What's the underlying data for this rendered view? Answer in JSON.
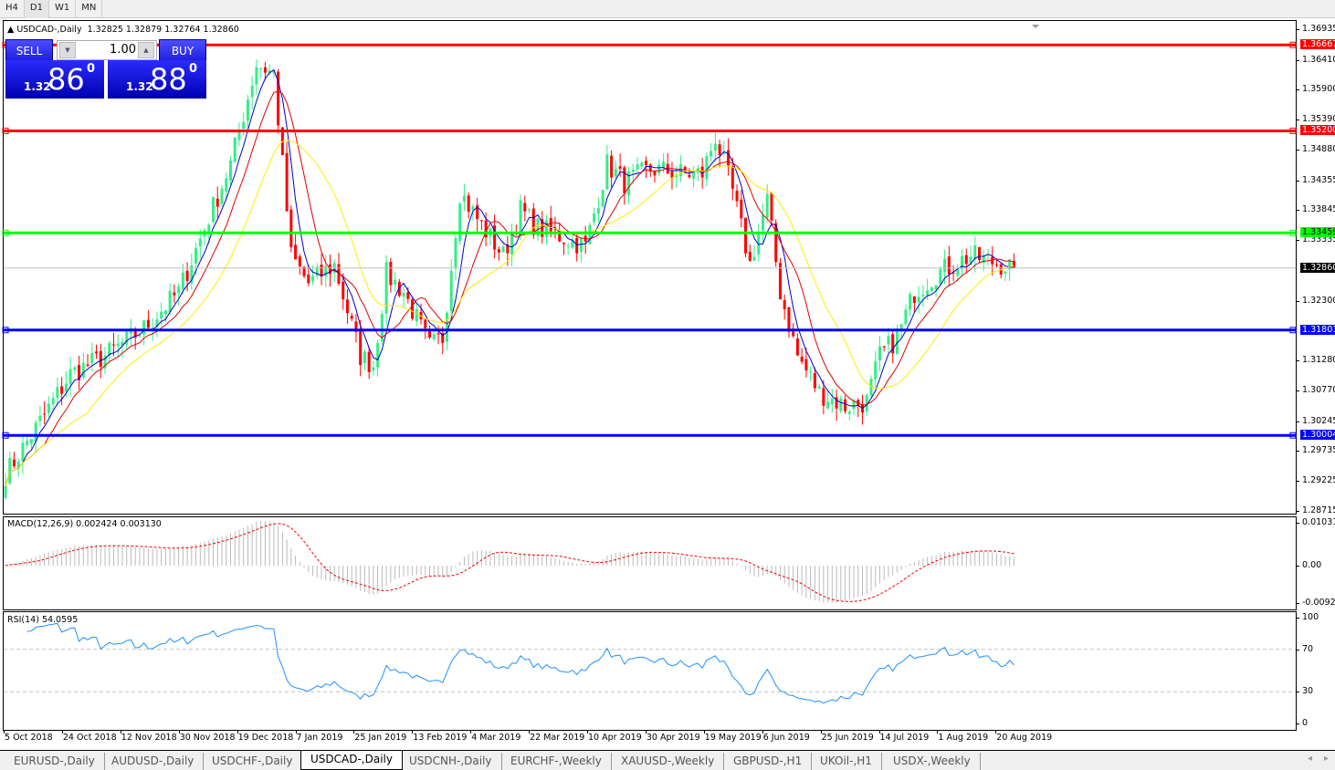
{
  "timeframes": [
    "H4",
    "D1",
    "W1",
    "MN"
  ],
  "active_timeframe": "D1",
  "chart": {
    "title": "USDCAD-,Daily",
    "ohlc": "1.32825 1.32879 1.32764 1.32860"
  },
  "trade_panel": {
    "sell_label": "SELL",
    "buy_label": "BUY",
    "lot": "1.00",
    "sell_prefix": "1.32",
    "sell_big": "86",
    "sell_pip": "0",
    "buy_prefix": "1.32",
    "buy_big": "88",
    "buy_pip": "0"
  },
  "price_axis": [
    "1.36935",
    "1.36410",
    "1.35900",
    "1.35390",
    "1.34880",
    "1.34355",
    "1.33845",
    "1.33335",
    "1.32300",
    "1.31280",
    "1.30770",
    "1.30245",
    "1.29735",
    "1.29225",
    "1.28715"
  ],
  "levels": [
    {
      "price": "1.36667",
      "color": "#ff0000"
    },
    {
      "price": "1.35200",
      "color": "#ff0000"
    },
    {
      "price": "1.33459",
      "color": "#00ff00"
    },
    {
      "price": "1.31801",
      "color": "#0000ff"
    },
    {
      "price": "1.30004",
      "color": "#0000ff"
    }
  ],
  "current_price": "1.32860",
  "macd": {
    "label": "MACD(12,26,9) 0.002424 0.003130",
    "axis": [
      "0.010311",
      "0.00",
      "-0.009203"
    ]
  },
  "rsi": {
    "label": "RSI(14) 54.0595",
    "axis": [
      "100",
      "70",
      "30",
      "0"
    ]
  },
  "time_axis": [
    "5 Oct 2018",
    "24 Oct 2018",
    "12 Nov 2018",
    "30 Nov 2018",
    "19 Dec 2018",
    "7 Jan 2019",
    "25 Jan 2019",
    "13 Feb 2019",
    "4 Mar 2019",
    "22 Mar 2019",
    "10 Apr 2019",
    "30 Apr 2019",
    "19 May 2019",
    "6 Jun 2019",
    "25 Jun 2019",
    "14 Jul 2019",
    "1 Aug 2019",
    "20 Aug 2019"
  ],
  "tabs": [
    "EURUSD-,Daily",
    "AUDUSD-,Daily",
    "USDCHF-,Daily",
    "USDCAD-,Daily",
    "USDCNH-,Daily",
    "EURCHF-,Weekly",
    "XAUUSD-,Weekly",
    "GBPUSD-,H1",
    "UKOil-,H1",
    "USDX-,Weekly"
  ],
  "active_tab": "USDCAD-,Daily",
  "colors": {
    "bull": "#33ee88",
    "bear": "#ff0000",
    "ma_fast": "#0000cc",
    "ma_mid": "#dd0000",
    "ma_slow": "#ffee00",
    "macd_hist": "#bbbbbb",
    "macd_signal": "#ff0000",
    "rsi": "#1e90ff"
  },
  "chart_data": {
    "type": "candlestick",
    "symbol": "USDCAD",
    "period": "Daily",
    "ylim": [
      1.28715,
      1.36935
    ],
    "approx_close_path": [
      [
        "2018-10-05",
        1.2934
      ],
      [
        "2018-10-16",
        1.3012
      ],
      [
        "2018-10-26",
        1.3105
      ],
      [
        "2018-11-07",
        1.3136
      ],
      [
        "2018-11-20",
        1.3183
      ],
      [
        "2018-11-30",
        1.3245
      ],
      [
        "2018-12-10",
        1.3354
      ],
      [
        "2018-12-18",
        1.3463
      ],
      [
        "2018-12-26",
        1.3634
      ],
      [
        "2019-01-01",
        1.3618
      ],
      [
        "2019-01-07",
        1.3307
      ],
      [
        "2019-01-11",
        1.326
      ],
      [
        "2019-01-21",
        1.3291
      ],
      [
        "2019-01-29",
        1.3136
      ],
      [
        "2019-02-01",
        1.312
      ],
      [
        "2019-02-06",
        1.3276
      ],
      [
        "2019-02-12",
        1.3245
      ],
      [
        "2019-02-20",
        1.3152
      ],
      [
        "2019-02-25",
        1.3167
      ],
      [
        "2019-03-01",
        1.3416
      ],
      [
        "2019-03-07",
        1.337
      ],
      [
        "2019-03-15",
        1.3307
      ],
      [
        "2019-03-21",
        1.3385
      ],
      [
        "2019-03-27",
        1.3354
      ],
      [
        "2019-04-04",
        1.3338
      ],
      [
        "2019-04-11",
        1.3323
      ],
      [
        "2019-04-18",
        1.3463
      ],
      [
        "2019-04-24",
        1.3432
      ],
      [
        "2019-05-02",
        1.3455
      ],
      [
        "2019-05-14",
        1.3447
      ],
      [
        "2019-05-20",
        1.3447
      ],
      [
        "2019-05-23",
        1.351
      ],
      [
        "2019-05-29",
        1.3416
      ],
      [
        "2019-06-04",
        1.3292
      ],
      [
        "2019-06-10",
        1.3401
      ],
      [
        "2019-06-13",
        1.3245
      ],
      [
        "2019-06-19",
        1.3136
      ],
      [
        "2019-06-26",
        1.3074
      ],
      [
        "2019-07-04",
        1.305
      ],
      [
        "2019-07-11",
        1.3058
      ],
      [
        "2019-07-16",
        1.3136
      ],
      [
        "2019-07-22",
        1.3167
      ],
      [
        "2019-07-26",
        1.3245
      ],
      [
        "2019-08-02",
        1.3276
      ],
      [
        "2019-08-08",
        1.3292
      ],
      [
        "2019-08-14",
        1.3307
      ],
      [
        "2019-08-28",
        1.3286
      ]
    ]
  }
}
